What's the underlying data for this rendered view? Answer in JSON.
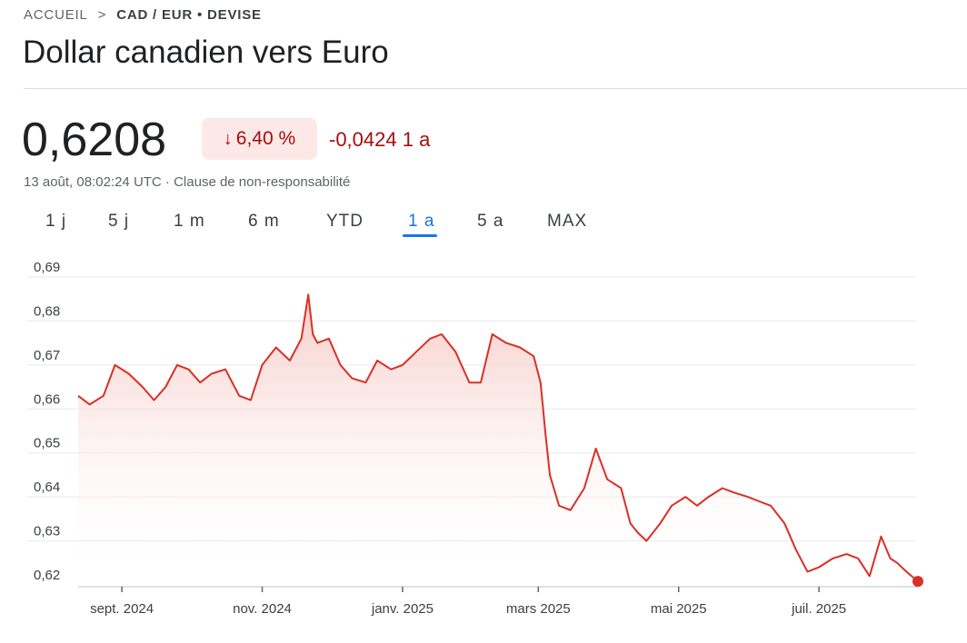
{
  "breadcrumb": {
    "home": "ACCUEIL",
    "separator": ">",
    "current": "CAD / EUR • DEVISE"
  },
  "title": "Dollar canadien vers Euro",
  "quote": {
    "price": "0,6208",
    "change_arrow": "↓",
    "change_percent": "6,40 %",
    "change_abs": "-0,0424 1 a",
    "meta": "13 août, 08:02:24 UTC · Clause de non-responsabilité"
  },
  "tabs": [
    {
      "label": "1 j",
      "active": false
    },
    {
      "label": "5 j",
      "active": false
    },
    {
      "label": "1 m",
      "active": false
    },
    {
      "label": "6 m",
      "active": false
    },
    {
      "label": "YTD",
      "active": false
    },
    {
      "label": "1 a",
      "active": true
    },
    {
      "label": "5 a",
      "active": false
    },
    {
      "label": "MAX",
      "active": false
    }
  ],
  "colors": {
    "line": "#d93025",
    "fill_top": "#f6c9c4",
    "grid": "#e8eaed",
    "accent": "#1a73e8",
    "negative": "#a50e0e"
  },
  "chart_data": {
    "type": "area",
    "title": "",
    "xlabel": "",
    "ylabel": "",
    "ylim": [
      0.62,
      0.69
    ],
    "y_ticks": [
      {
        "value": 0.69,
        "label": "0,69"
      },
      {
        "value": 0.68,
        "label": "0,68"
      },
      {
        "value": 0.67,
        "label": "0,67"
      },
      {
        "value": 0.66,
        "label": "0,66"
      },
      {
        "value": 0.65,
        "label": "0,65"
      },
      {
        "value": 0.64,
        "label": "0,64"
      },
      {
        "value": 0.63,
        "label": "0,63"
      },
      {
        "value": 0.62,
        "label": "0,62"
      }
    ],
    "x_ticks": [
      {
        "date": "2024-09-01",
        "label": "sept. 2024"
      },
      {
        "date": "2024-11-01",
        "label": "nov. 2024"
      },
      {
        "date": "2025-01-01",
        "label": "janv. 2025"
      },
      {
        "date": "2025-03-01",
        "label": "mars 2025"
      },
      {
        "date": "2025-05-01",
        "label": "mai 2025"
      },
      {
        "date": "2025-07-01",
        "label": "juil. 2025"
      }
    ],
    "x_range": [
      "2024-08-13",
      "2025-08-13"
    ],
    "grid": true,
    "series": [
      {
        "x": [
          "2024-08-13",
          "2024-08-18",
          "2024-08-24",
          "2024-08-29",
          "2024-09-04",
          "2024-09-10",
          "2024-09-15",
          "2024-09-20",
          "2024-09-25",
          "2024-09-30",
          "2024-10-05",
          "2024-10-10",
          "2024-10-16",
          "2024-10-22",
          "2024-10-27",
          "2024-11-01",
          "2024-11-07",
          "2024-11-13",
          "2024-11-18",
          "2024-11-21",
          "2024-11-23",
          "2024-11-25",
          "2024-11-30",
          "2024-12-05",
          "2024-12-10",
          "2024-12-16",
          "2024-12-21",
          "2024-12-27",
          "2025-01-01",
          "2025-01-07",
          "2025-01-13",
          "2025-01-18",
          "2025-01-24",
          "2025-01-30",
          "2025-02-04",
          "2025-02-09",
          "2025-02-15",
          "2025-02-21",
          "2025-02-27",
          "2025-03-02",
          "2025-03-04",
          "2025-03-06",
          "2025-03-10",
          "2025-03-15",
          "2025-03-21",
          "2025-03-26",
          "2025-03-31",
          "2025-04-06",
          "2025-04-10",
          "2025-04-13",
          "2025-04-17",
          "2025-04-23",
          "2025-04-28",
          "2025-05-04",
          "2025-05-09",
          "2025-05-14",
          "2025-05-20",
          "2025-05-25",
          "2025-05-31",
          "2025-06-05",
          "2025-06-10",
          "2025-06-16",
          "2025-06-21",
          "2025-06-26",
          "2025-07-01",
          "2025-07-07",
          "2025-07-13",
          "2025-07-18",
          "2025-07-23",
          "2025-07-28",
          "2025-08-01",
          "2025-08-04",
          "2025-08-08",
          "2025-08-13"
        ],
        "y": [
          0.663,
          0.661,
          0.663,
          0.67,
          0.668,
          0.665,
          0.662,
          0.665,
          0.67,
          0.669,
          0.666,
          0.668,
          0.669,
          0.663,
          0.662,
          0.67,
          0.674,
          0.671,
          0.676,
          0.686,
          0.677,
          0.675,
          0.676,
          0.67,
          0.667,
          0.666,
          0.671,
          0.669,
          0.67,
          0.673,
          0.676,
          0.677,
          0.673,
          0.666,
          0.666,
          0.677,
          0.675,
          0.674,
          0.672,
          0.666,
          0.655,
          0.645,
          0.638,
          0.637,
          0.642,
          0.651,
          0.644,
          0.642,
          0.634,
          0.632,
          0.63,
          0.634,
          0.638,
          0.64,
          0.638,
          0.64,
          0.642,
          0.641,
          0.64,
          0.639,
          0.638,
          0.634,
          0.628,
          0.623,
          0.624,
          0.626,
          0.627,
          0.626,
          0.622,
          0.631,
          0.626,
          0.625,
          0.623,
          0.6208
        ]
      }
    ]
  }
}
